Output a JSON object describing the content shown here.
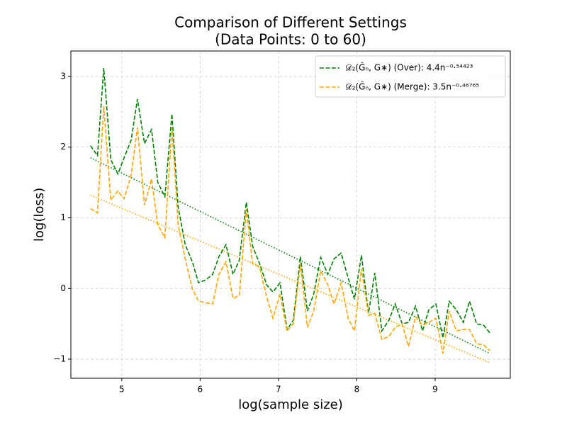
{
  "chart_data": {
    "type": "line",
    "title": [
      "Comparison of Different Settings",
      "(Data Points: 0 to 60)"
    ],
    "xlabel": "log(sample size)",
    "ylabel": "log(loss)",
    "x": [
      4.6,
      4.69,
      4.77,
      4.86,
      4.95,
      5.03,
      5.12,
      5.2,
      5.29,
      5.38,
      5.46,
      5.55,
      5.64,
      5.72,
      5.81,
      5.9,
      5.98,
      6.07,
      6.16,
      6.24,
      6.33,
      6.42,
      6.5,
      6.59,
      6.67,
      6.76,
      6.85,
      6.93,
      7.02,
      7.11,
      7.19,
      7.28,
      7.37,
      7.45,
      7.54,
      7.63,
      7.71,
      7.8,
      7.89,
      7.97,
      8.06,
      8.15,
      8.23,
      8.32,
      8.41,
      8.49,
      8.58,
      8.66,
      8.75,
      8.84,
      8.92,
      9.01,
      9.1,
      9.18,
      9.27,
      9.36,
      9.44,
      9.53,
      9.62,
      9.7
    ],
    "series": [
      {
        "name": "𝒟₂(Ĝₙ, G∗) (Over): 4.4n⁻⁰·⁵⁴⁴²³",
        "color": "#008000",
        "values": [
          2.02,
          1.88,
          3.12,
          1.82,
          1.62,
          1.85,
          2.1,
          2.68,
          2.05,
          2.25,
          1.5,
          1.3,
          2.47,
          1.15,
          0.62,
          0.38,
          0.08,
          0.12,
          0.2,
          0.45,
          0.62,
          0.2,
          0.4,
          1.22,
          0.6,
          0.35,
          0.05,
          -0.05,
          0.08,
          -0.58,
          -0.45,
          0.45,
          -0.32,
          -0.08,
          0.44,
          0.2,
          0.42,
          0.5,
          0.15,
          -0.15,
          0.47,
          -0.35,
          0.22,
          -0.6,
          -0.45,
          -0.22,
          -0.5,
          -0.48,
          -0.25,
          -0.6,
          -0.3,
          -0.22,
          -0.7,
          -0.18,
          -0.3,
          -0.48,
          -0.18,
          -0.5,
          -0.52,
          -0.63
        ]
      },
      {
        "name": "𝒟₂(Ĝₙ, G∗) (Merge): 3.5n⁻⁰·⁴⁶⁷⁶⁵",
        "color": "#ffa500",
        "values": [
          1.13,
          1.07,
          2.58,
          1.25,
          1.38,
          1.27,
          1.6,
          2.28,
          1.18,
          1.55,
          0.9,
          0.72,
          2.28,
          0.9,
          0.42,
          0.0,
          -0.18,
          -0.2,
          -0.22,
          0.2,
          0.38,
          -0.14,
          -0.1,
          1.12,
          0.35,
          0.3,
          -0.12,
          -0.42,
          -0.08,
          -0.6,
          -0.5,
          0.35,
          -0.55,
          -0.32,
          0.25,
          0.05,
          -0.22,
          0.08,
          -0.42,
          -0.6,
          0.28,
          -0.38,
          -0.35,
          -0.72,
          -0.68,
          -0.55,
          -0.5,
          -0.82,
          -0.4,
          -0.52,
          -0.48,
          -0.42,
          -0.92,
          -0.32,
          -0.6,
          -0.58,
          -0.58,
          -0.78,
          -0.8,
          -0.88
        ]
      }
    ],
    "fits": [
      {
        "color": "#008000",
        "x": [
          4.6,
          9.7
        ],
        "values": [
          1.85,
          -0.92
        ]
      },
      {
        "color": "#ffa500",
        "x": [
          4.6,
          9.7
        ],
        "values": [
          1.32,
          -1.05
        ]
      }
    ],
    "xlim": [
      4.35,
      9.96
    ],
    "ylim": [
      -1.27,
      3.36
    ],
    "xticks": [
      5,
      6,
      7,
      8,
      9
    ],
    "yticks": [
      {
        "value": -1,
        "label": "−1"
      },
      0,
      1,
      2,
      3
    ],
    "grid": true,
    "legend": "upper right"
  }
}
